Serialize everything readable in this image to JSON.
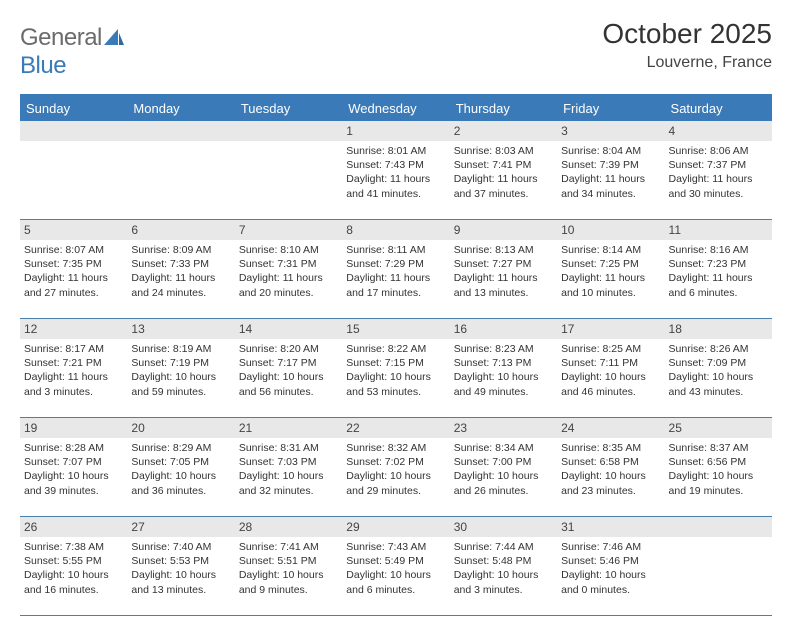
{
  "brand": {
    "word1": "General",
    "word2": "Blue",
    "logo_color": "#3a7ab8",
    "text_gray": "#6b6b6b"
  },
  "header": {
    "title": "October 2025",
    "location": "Louverne, France"
  },
  "colors": {
    "header_bg": "#3a7ab8",
    "header_text": "#ffffff",
    "daynum_bg": "#e8e8e8",
    "border": "#4a7fa8",
    "text": "#333333"
  },
  "day_names": [
    "Sunday",
    "Monday",
    "Tuesday",
    "Wednesday",
    "Thursday",
    "Friday",
    "Saturday"
  ],
  "weeks": [
    [
      null,
      null,
      null,
      {
        "n": "1",
        "sr": "Sunrise: 8:01 AM",
        "ss": "Sunset: 7:43 PM",
        "d1": "Daylight: 11 hours",
        "d2": "and 41 minutes."
      },
      {
        "n": "2",
        "sr": "Sunrise: 8:03 AM",
        "ss": "Sunset: 7:41 PM",
        "d1": "Daylight: 11 hours",
        "d2": "and 37 minutes."
      },
      {
        "n": "3",
        "sr": "Sunrise: 8:04 AM",
        "ss": "Sunset: 7:39 PM",
        "d1": "Daylight: 11 hours",
        "d2": "and 34 minutes."
      },
      {
        "n": "4",
        "sr": "Sunrise: 8:06 AM",
        "ss": "Sunset: 7:37 PM",
        "d1": "Daylight: 11 hours",
        "d2": "and 30 minutes."
      }
    ],
    [
      {
        "n": "5",
        "sr": "Sunrise: 8:07 AM",
        "ss": "Sunset: 7:35 PM",
        "d1": "Daylight: 11 hours",
        "d2": "and 27 minutes."
      },
      {
        "n": "6",
        "sr": "Sunrise: 8:09 AM",
        "ss": "Sunset: 7:33 PM",
        "d1": "Daylight: 11 hours",
        "d2": "and 24 minutes."
      },
      {
        "n": "7",
        "sr": "Sunrise: 8:10 AM",
        "ss": "Sunset: 7:31 PM",
        "d1": "Daylight: 11 hours",
        "d2": "and 20 minutes."
      },
      {
        "n": "8",
        "sr": "Sunrise: 8:11 AM",
        "ss": "Sunset: 7:29 PM",
        "d1": "Daylight: 11 hours",
        "d2": "and 17 minutes."
      },
      {
        "n": "9",
        "sr": "Sunrise: 8:13 AM",
        "ss": "Sunset: 7:27 PM",
        "d1": "Daylight: 11 hours",
        "d2": "and 13 minutes."
      },
      {
        "n": "10",
        "sr": "Sunrise: 8:14 AM",
        "ss": "Sunset: 7:25 PM",
        "d1": "Daylight: 11 hours",
        "d2": "and 10 minutes."
      },
      {
        "n": "11",
        "sr": "Sunrise: 8:16 AM",
        "ss": "Sunset: 7:23 PM",
        "d1": "Daylight: 11 hours",
        "d2": "and 6 minutes."
      }
    ],
    [
      {
        "n": "12",
        "sr": "Sunrise: 8:17 AM",
        "ss": "Sunset: 7:21 PM",
        "d1": "Daylight: 11 hours",
        "d2": "and 3 minutes."
      },
      {
        "n": "13",
        "sr": "Sunrise: 8:19 AM",
        "ss": "Sunset: 7:19 PM",
        "d1": "Daylight: 10 hours",
        "d2": "and 59 minutes."
      },
      {
        "n": "14",
        "sr": "Sunrise: 8:20 AM",
        "ss": "Sunset: 7:17 PM",
        "d1": "Daylight: 10 hours",
        "d2": "and 56 minutes."
      },
      {
        "n": "15",
        "sr": "Sunrise: 8:22 AM",
        "ss": "Sunset: 7:15 PM",
        "d1": "Daylight: 10 hours",
        "d2": "and 53 minutes."
      },
      {
        "n": "16",
        "sr": "Sunrise: 8:23 AM",
        "ss": "Sunset: 7:13 PM",
        "d1": "Daylight: 10 hours",
        "d2": "and 49 minutes."
      },
      {
        "n": "17",
        "sr": "Sunrise: 8:25 AM",
        "ss": "Sunset: 7:11 PM",
        "d1": "Daylight: 10 hours",
        "d2": "and 46 minutes."
      },
      {
        "n": "18",
        "sr": "Sunrise: 8:26 AM",
        "ss": "Sunset: 7:09 PM",
        "d1": "Daylight: 10 hours",
        "d2": "and 43 minutes."
      }
    ],
    [
      {
        "n": "19",
        "sr": "Sunrise: 8:28 AM",
        "ss": "Sunset: 7:07 PM",
        "d1": "Daylight: 10 hours",
        "d2": "and 39 minutes."
      },
      {
        "n": "20",
        "sr": "Sunrise: 8:29 AM",
        "ss": "Sunset: 7:05 PM",
        "d1": "Daylight: 10 hours",
        "d2": "and 36 minutes."
      },
      {
        "n": "21",
        "sr": "Sunrise: 8:31 AM",
        "ss": "Sunset: 7:03 PM",
        "d1": "Daylight: 10 hours",
        "d2": "and 32 minutes."
      },
      {
        "n": "22",
        "sr": "Sunrise: 8:32 AM",
        "ss": "Sunset: 7:02 PM",
        "d1": "Daylight: 10 hours",
        "d2": "and 29 minutes."
      },
      {
        "n": "23",
        "sr": "Sunrise: 8:34 AM",
        "ss": "Sunset: 7:00 PM",
        "d1": "Daylight: 10 hours",
        "d2": "and 26 minutes."
      },
      {
        "n": "24",
        "sr": "Sunrise: 8:35 AM",
        "ss": "Sunset: 6:58 PM",
        "d1": "Daylight: 10 hours",
        "d2": "and 23 minutes."
      },
      {
        "n": "25",
        "sr": "Sunrise: 8:37 AM",
        "ss": "Sunset: 6:56 PM",
        "d1": "Daylight: 10 hours",
        "d2": "and 19 minutes."
      }
    ],
    [
      {
        "n": "26",
        "sr": "Sunrise: 7:38 AM",
        "ss": "Sunset: 5:55 PM",
        "d1": "Daylight: 10 hours",
        "d2": "and 16 minutes."
      },
      {
        "n": "27",
        "sr": "Sunrise: 7:40 AM",
        "ss": "Sunset: 5:53 PM",
        "d1": "Daylight: 10 hours",
        "d2": "and 13 minutes."
      },
      {
        "n": "28",
        "sr": "Sunrise: 7:41 AM",
        "ss": "Sunset: 5:51 PM",
        "d1": "Daylight: 10 hours",
        "d2": "and 9 minutes."
      },
      {
        "n": "29",
        "sr": "Sunrise: 7:43 AM",
        "ss": "Sunset: 5:49 PM",
        "d1": "Daylight: 10 hours",
        "d2": "and 6 minutes."
      },
      {
        "n": "30",
        "sr": "Sunrise: 7:44 AM",
        "ss": "Sunset: 5:48 PM",
        "d1": "Daylight: 10 hours",
        "d2": "and 3 minutes."
      },
      {
        "n": "31",
        "sr": "Sunrise: 7:46 AM",
        "ss": "Sunset: 5:46 PM",
        "d1": "Daylight: 10 hours",
        "d2": "and 0 minutes."
      },
      null
    ]
  ]
}
